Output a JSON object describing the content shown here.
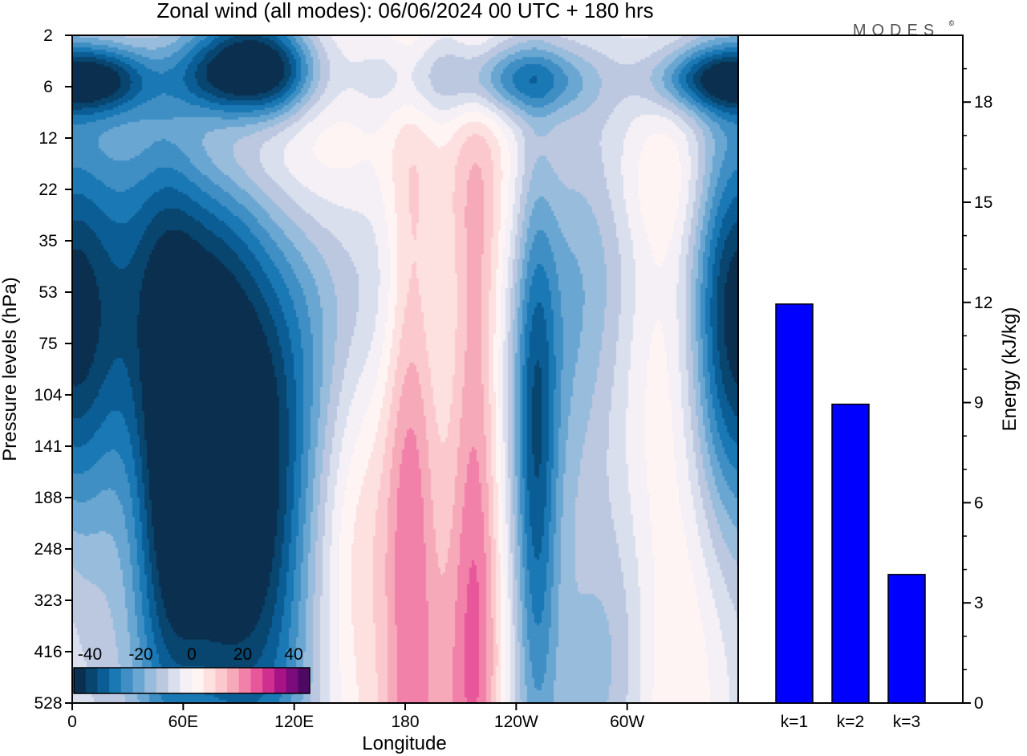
{
  "title": "Zonal wind (all modes):  06/06/2024  00 UTC  + 180 hrs",
  "brand": "MODES",
  "brand_mark": "©",
  "chart_data": [
    {
      "type": "heatmap",
      "title": "Zonal wind (all modes):  06/06/2024  00 UTC  + 180 hrs",
      "xlabel": "Longitude",
      "ylabel": "Pressure levels (hPa)",
      "x_ticks": [
        "0",
        "60E",
        "120E",
        "180",
        "120W",
        "60W"
      ],
      "x_range_deg": [
        0,
        360
      ],
      "y_ticks": [
        "2",
        "6",
        "12",
        "22",
        "35",
        "53",
        "75",
        "104",
        "141",
        "188",
        "248",
        "323",
        "416",
        "528"
      ],
      "colorbar": {
        "labels": [
          "-40",
          "-20",
          "0",
          "20",
          "40"
        ],
        "range": [
          -45,
          45
        ],
        "colors": [
          "#0a2f4f",
          "#08456f",
          "#0b5e95",
          "#1a78b4",
          "#3f8fc4",
          "#6aa6d2",
          "#97bcdc",
          "#bcc7e0",
          "#dadfee",
          "#f4f0f6",
          "#fff4f4",
          "#fde0e0",
          "#fbc9cd",
          "#f6a9b9",
          "#f281a9",
          "#e9579b",
          "#cf2f8f",
          "#a81486",
          "#7b0c7c",
          "#4e0a63"
        ]
      },
      "features": [
        {
          "lon": 20,
          "level": 5,
          "value": -25,
          "sx": 18,
          "sy": 0.5
        },
        {
          "lon": 75,
          "level": 4.8,
          "value": -15,
          "sx": 18,
          "sy": 0.5
        },
        {
          "lon": 95,
          "level": 3.5,
          "value": -25,
          "sx": 20,
          "sy": 0.8
        },
        {
          "lon": 112,
          "level": 4.5,
          "value": -20,
          "sx": 16,
          "sy": 0.6
        },
        {
          "lon": 245,
          "level": 5,
          "value": -22,
          "sx": 25,
          "sy": 0.5
        },
        {
          "lon": 345,
          "level": 5,
          "value": -30,
          "sx": 22,
          "sy": 0.45
        },
        {
          "lon": 190,
          "level": 5,
          "value": -10,
          "sx": 40,
          "sy": 0.6
        },
        {
          "lon": 80,
          "level": 12,
          "value": 12,
          "sx": 22,
          "sy": 1.0
        },
        {
          "lon": 125,
          "level": 13,
          "value": 10,
          "sx": 30,
          "sy": 1.4
        },
        {
          "lon": 200,
          "level": 18,
          "value": 7,
          "sx": 30,
          "sy": 1.5
        },
        {
          "lon": 320,
          "level": 19,
          "value": 8,
          "sx": 25,
          "sy": 1.0
        },
        {
          "lon": 20,
          "level": 45,
          "value": -20,
          "sx": 30,
          "sy": 3.0
        },
        {
          "lon": 160,
          "level": 50,
          "value": -15,
          "sx": 40,
          "sy": 3.0
        },
        {
          "lon": 275,
          "level": 52,
          "value": -15,
          "sx": 25,
          "sy": 3.5
        },
        {
          "lon": 350,
          "level": 52,
          "value": -20,
          "sx": 15,
          "sy": 3.0
        },
        {
          "lon": 75,
          "level": 130,
          "value": -38,
          "sx": 20,
          "sy": 4.5
        },
        {
          "lon": 50,
          "level": 155,
          "value": -28,
          "sx": 14,
          "sy": 4.0
        },
        {
          "lon": 100,
          "level": 200,
          "value": -22,
          "sx": 20,
          "sy": 5.0
        },
        {
          "lon": 115,
          "level": 300,
          "value": -12,
          "sx": 18,
          "sy": 4.5
        },
        {
          "lon": 5,
          "level": 75,
          "value": -15,
          "sx": 20,
          "sy": 3.0
        },
        {
          "lon": 250,
          "level": 150,
          "value": -22,
          "sx": 8,
          "sy": 4.0
        },
        {
          "lon": 250,
          "level": 330,
          "value": -12,
          "sx": 20,
          "sy": 4.0
        },
        {
          "lon": 182,
          "level": 170,
          "value": 18,
          "sx": 10,
          "sy": 6.0
        },
        {
          "lon": 218,
          "level": 210,
          "value": 20,
          "sx": 10,
          "sy": 6.0
        },
        {
          "lon": 200,
          "level": 350,
          "value": 10,
          "sx": 25,
          "sy": 5.0
        },
        {
          "lon": 155,
          "level": 200,
          "value": 8,
          "sx": 15,
          "sy": 5.0
        },
        {
          "lon": 330,
          "level": 150,
          "value": 10,
          "sx": 20,
          "sy": 4.0
        },
        {
          "lon": 290,
          "level": 500,
          "value": -10,
          "sx": 15,
          "sy": 2.5
        },
        {
          "lon": 10,
          "level": 380,
          "value": -8,
          "sx": 25,
          "sy": 3.0
        }
      ]
    },
    {
      "type": "bar",
      "categories": [
        "k=1",
        "k=2",
        "k=3"
      ],
      "values": [
        11.95,
        8.95,
        3.85
      ],
      "ylabel": "Energy (kJ/kg)",
      "y_ticks": [
        0,
        3,
        6,
        9,
        12,
        15,
        18
      ],
      "ylim": [
        0,
        20
      ],
      "bar_color": "#0000ff"
    }
  ]
}
